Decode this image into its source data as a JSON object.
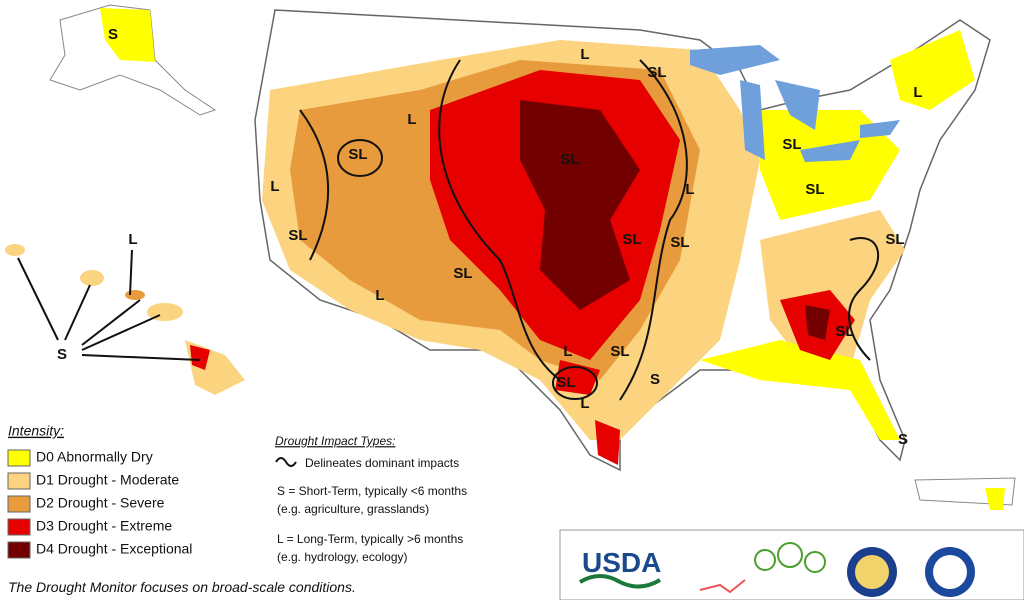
{
  "map": {
    "labels": [
      "S",
      "L",
      "S",
      "L",
      "SL",
      "L",
      "SL",
      "SL",
      "L",
      "SL",
      "L",
      "L",
      "SL",
      "SL",
      "SL",
      "SL",
      "SL",
      "SL",
      "L",
      "L",
      "SL",
      "SL",
      "S",
      "L",
      "SL",
      "S"
    ]
  },
  "legend": {
    "title": "Intensity:",
    "items": [
      {
        "label": "D0 Abnormally Dry",
        "color": "#ffff00"
      },
      {
        "label": "D1 Drought - Moderate",
        "color": "#fcd37f"
      },
      {
        "label": "D2 Drought - Severe",
        "color": "#e89b3c"
      },
      {
        "label": "D3 Drought - Extreme",
        "color": "#e60000"
      },
      {
        "label": "D4 Drought - Exceptional",
        "color": "#730000"
      }
    ]
  },
  "impacts": {
    "title": "Drought Impact Types:",
    "lines": [
      "Delineates dominant impacts",
      "S = Short-Term, typically <6 months",
      "(e.g. agriculture, grasslands)",
      "L = Long-Term, typically >6 months",
      "(e.g. hydrology, ecology)"
    ]
  },
  "footer": "The Drought Monitor focuses on broad-scale conditions.",
  "logos": {
    "usda": "USDA"
  }
}
